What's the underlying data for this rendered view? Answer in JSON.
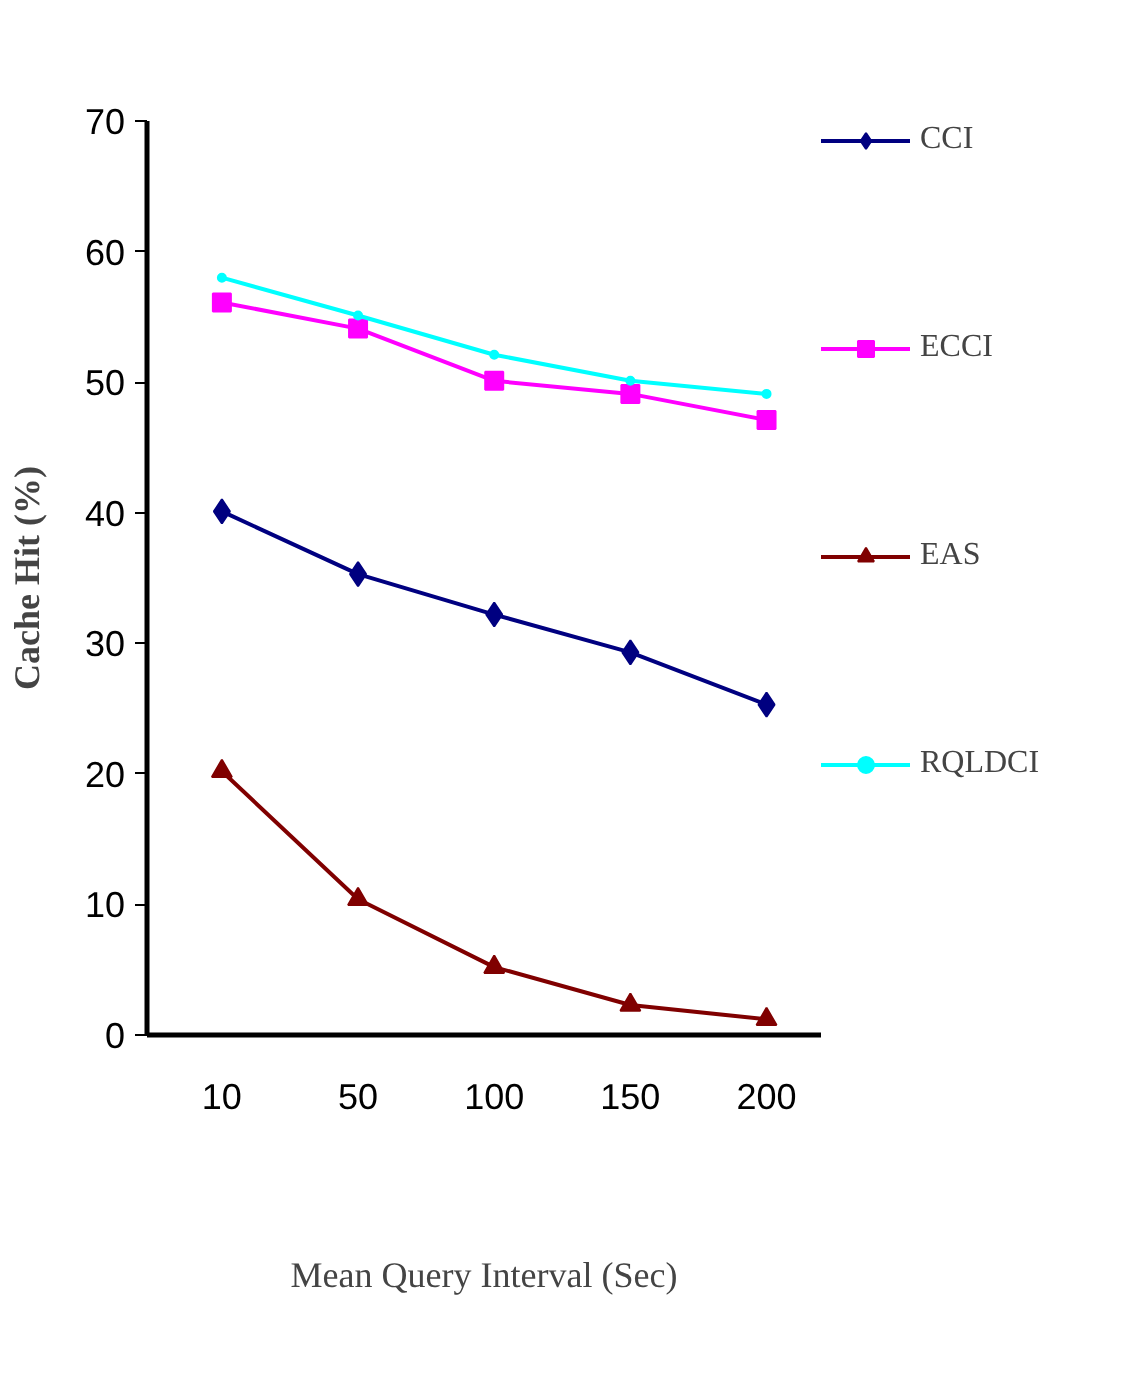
{
  "chart_data": {
    "type": "line",
    "xlabel": "Mean Query Interval (Sec)",
    "ylabel": "Cache Hit (%)",
    "categories": [
      "10",
      "50",
      "100",
      "150",
      "200"
    ],
    "series": [
      {
        "name": "CCI",
        "color": "#000080",
        "marker": "diamond",
        "values": [
          40.1,
          35.3,
          32.2,
          29.3,
          25.3
        ]
      },
      {
        "name": "ECCI",
        "color": "#ff00ff",
        "marker": "square",
        "values": [
          56.1,
          54.1,
          50.1,
          49.1,
          47.1
        ]
      },
      {
        "name": "EAS",
        "color": "#800000",
        "marker": "triangle",
        "values": [
          20.2,
          10.4,
          5.2,
          2.3,
          1.2
        ]
      },
      {
        "name": "RQLDCI",
        "color": "#00ffff",
        "marker": "circle",
        "values": [
          58,
          55.1,
          52.1,
          50.1,
          49.1
        ]
      }
    ],
    "ylim": [
      0,
      70
    ],
    "yticks": [
      0,
      10,
      20,
      30,
      40,
      50,
      60,
      70
    ],
    "grid": false,
    "legend": "right"
  }
}
